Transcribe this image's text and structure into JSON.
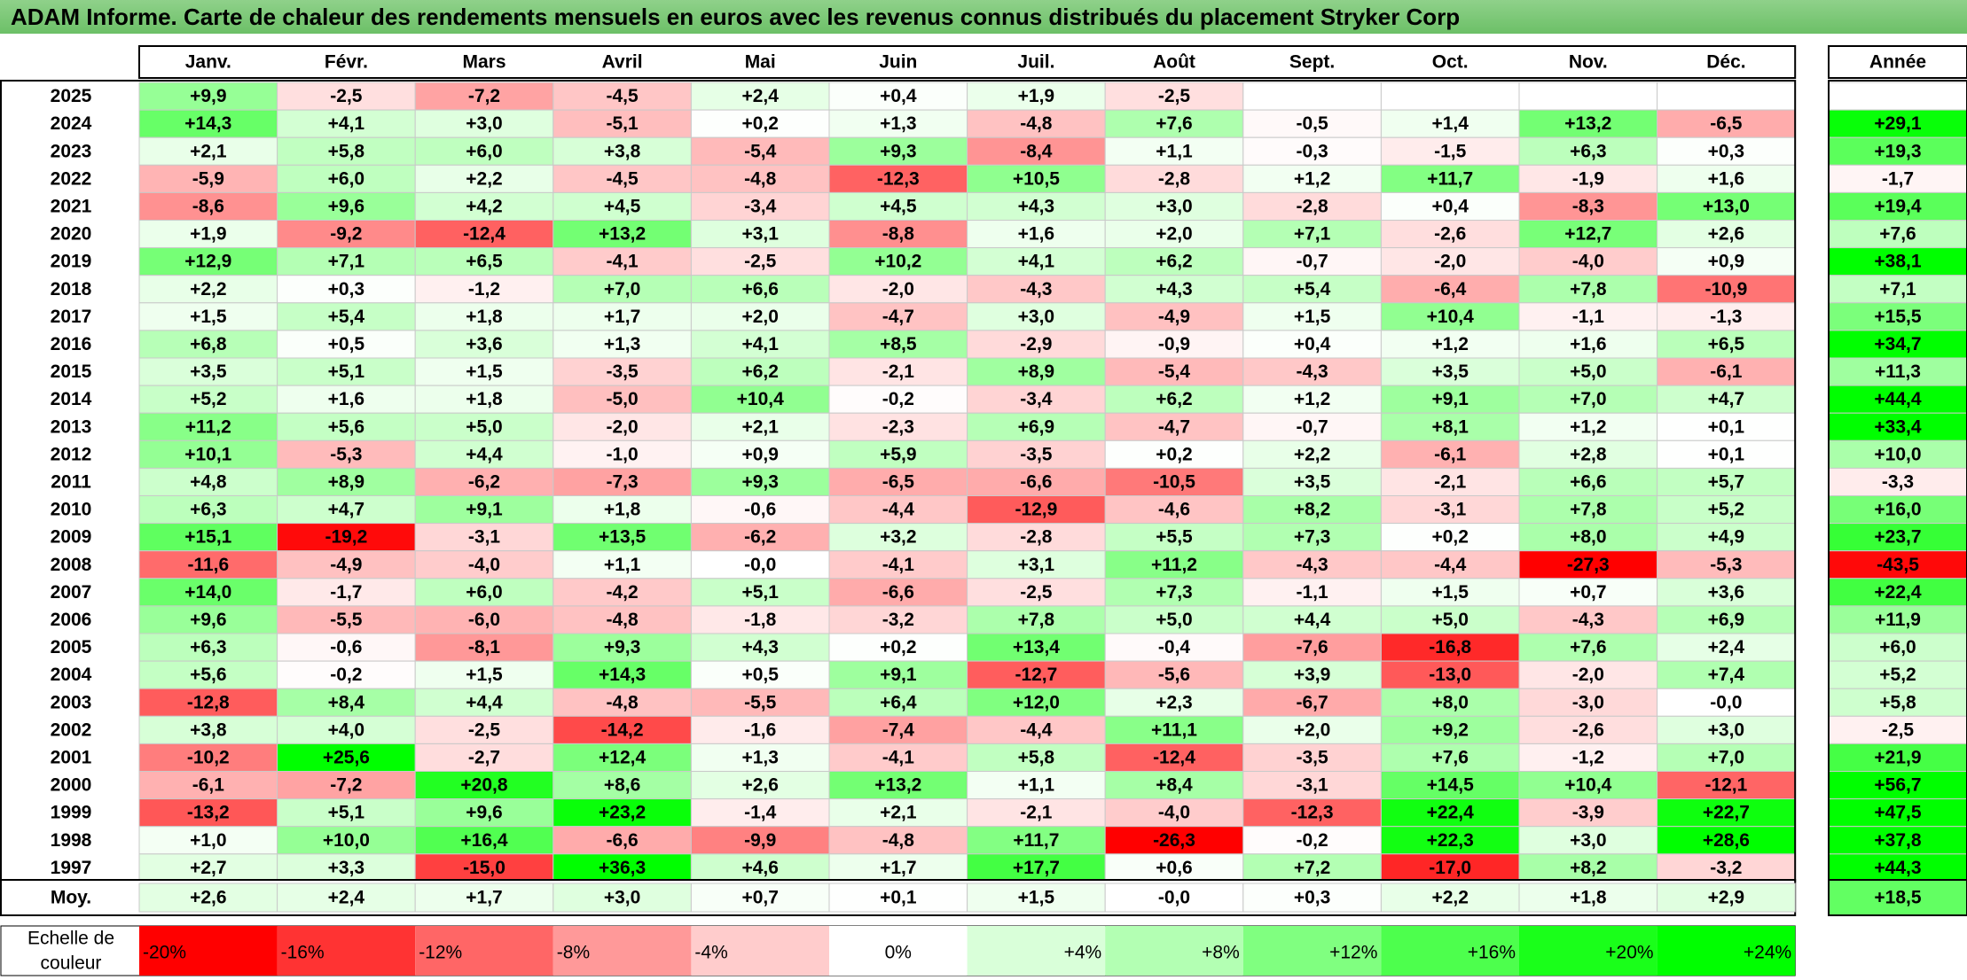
{
  "title": "ADAM Informe. Carte de chaleur des rendements mensuels en euros avec les revenus connus distribués du placement Stryker Corp",
  "chart_data": {
    "type": "heatmap",
    "months": [
      "Janv.",
      "Févr.",
      "Mars",
      "Avril",
      "Mai",
      "Juin",
      "Juil.",
      "Août",
      "Sept.",
      "Oct.",
      "Nov.",
      "Déc."
    ],
    "year_column_label": "Année",
    "average_row_label": "Moy.",
    "rows": [
      {
        "year": "2025",
        "months": [
          "+9,9",
          "-2,5",
          "-7,2",
          "-4,5",
          "+2,4",
          "+0,4",
          "+1,9",
          "-2,5",
          "",
          "",
          "",
          ""
        ],
        "annual": ""
      },
      {
        "year": "2024",
        "months": [
          "+14,3",
          "+4,1",
          "+3,0",
          "-5,1",
          "+0,2",
          "+1,3",
          "-4,8",
          "+7,6",
          "-0,5",
          "+1,4",
          "+13,2",
          "-6,5"
        ],
        "annual": "+29,1"
      },
      {
        "year": "2023",
        "months": [
          "+2,1",
          "+5,8",
          "+6,0",
          "+3,8",
          "-5,4",
          "+9,3",
          "-8,4",
          "+1,1",
          "-0,3",
          "-1,5",
          "+6,3",
          "+0,3"
        ],
        "annual": "+19,3"
      },
      {
        "year": "2022",
        "months": [
          "-5,9",
          "+6,0",
          "+2,2",
          "-4,5",
          "-4,8",
          "-12,3",
          "+10,5",
          "-2,8",
          "+1,2",
          "+11,7",
          "-1,9",
          "+1,6"
        ],
        "annual": "-1,7"
      },
      {
        "year": "2021",
        "months": [
          "-8,6",
          "+9,6",
          "+4,2",
          "+4,5",
          "-3,4",
          "+4,5",
          "+4,3",
          "+3,0",
          "-2,8",
          "+0,4",
          "-8,3",
          "+13,0"
        ],
        "annual": "+19,4"
      },
      {
        "year": "2020",
        "months": [
          "+1,9",
          "-9,2",
          "-12,4",
          "+13,2",
          "+3,1",
          "-8,8",
          "+1,6",
          "+2,0",
          "+7,1",
          "-2,6",
          "+12,7",
          "+2,6"
        ],
        "annual": "+7,6"
      },
      {
        "year": "2019",
        "months": [
          "+12,9",
          "+7,1",
          "+6,5",
          "-4,1",
          "-2,5",
          "+10,2",
          "+4,1",
          "+6,2",
          "-0,7",
          "-2,0",
          "-4,0",
          "+0,9"
        ],
        "annual": "+38,1"
      },
      {
        "year": "2018",
        "months": [
          "+2,2",
          "+0,3",
          "-1,2",
          "+7,0",
          "+6,6",
          "-2,0",
          "-4,3",
          "+4,3",
          "+5,4",
          "-6,4",
          "+7,8",
          "-10,9"
        ],
        "annual": "+7,1"
      },
      {
        "year": "2017",
        "months": [
          "+1,5",
          "+5,4",
          "+1,8",
          "+1,7",
          "+2,0",
          "-4,7",
          "+3,0",
          "-4,9",
          "+1,5",
          "+10,4",
          "-1,1",
          "-1,3"
        ],
        "annual": "+15,5"
      },
      {
        "year": "2016",
        "months": [
          "+6,8",
          "+0,5",
          "+3,6",
          "+1,3",
          "+4,1",
          "+8,5",
          "-2,9",
          "-0,9",
          "+0,4",
          "+1,2",
          "+1,6",
          "+6,5"
        ],
        "annual": "+34,7"
      },
      {
        "year": "2015",
        "months": [
          "+3,5",
          "+5,1",
          "+1,5",
          "-3,5",
          "+6,2",
          "-2,1",
          "+8,9",
          "-5,4",
          "-4,3",
          "+3,5",
          "+5,0",
          "-6,1"
        ],
        "annual": "+11,3"
      },
      {
        "year": "2014",
        "months": [
          "+5,2",
          "+1,6",
          "+1,8",
          "-5,0",
          "+10,4",
          "-0,2",
          "-3,4",
          "+6,2",
          "+1,2",
          "+9,1",
          "+7,0",
          "+4,7"
        ],
        "annual": "+44,4"
      },
      {
        "year": "2013",
        "months": [
          "+11,2",
          "+5,6",
          "+5,0",
          "-2,0",
          "+2,1",
          "-2,3",
          "+6,9",
          "-4,7",
          "-0,7",
          "+8,1",
          "+1,2",
          "+0,1"
        ],
        "annual": "+33,4"
      },
      {
        "year": "2012",
        "months": [
          "+10,1",
          "-5,3",
          "+4,4",
          "-1,0",
          "+0,9",
          "+5,9",
          "-3,5",
          "+0,2",
          "+2,2",
          "-6,1",
          "+2,8",
          "+0,1"
        ],
        "annual": "+10,0"
      },
      {
        "year": "2011",
        "months": [
          "+4,8",
          "+8,9",
          "-6,2",
          "-7,3",
          "+9,3",
          "-6,5",
          "-6,6",
          "-10,5",
          "+3,5",
          "-2,1",
          "+6,6",
          "+5,7"
        ],
        "annual": "-3,3"
      },
      {
        "year": "2010",
        "months": [
          "+6,3",
          "+4,7",
          "+9,1",
          "+1,8",
          "-0,6",
          "-4,4",
          "-12,9",
          "-4,6",
          "+8,2",
          "-3,1",
          "+7,8",
          "+5,2"
        ],
        "annual": "+16,0"
      },
      {
        "year": "2009",
        "months": [
          "+15,1",
          "-19,2",
          "-3,1",
          "+13,5",
          "-6,2",
          "+3,2",
          "-2,8",
          "+5,5",
          "+7,3",
          "+0,2",
          "+8,0",
          "+4,9"
        ],
        "annual": "+23,7"
      },
      {
        "year": "2008",
        "months": [
          "-11,6",
          "-4,9",
          "-4,0",
          "+1,1",
          "-0,0",
          "-4,1",
          "+3,1",
          "+11,2",
          "-4,3",
          "-4,4",
          "-27,3",
          "-5,3"
        ],
        "annual": "-43,5"
      },
      {
        "year": "2007",
        "months": [
          "+14,0",
          "-1,7",
          "+6,0",
          "-4,2",
          "+5,1",
          "-6,6",
          "-2,5",
          "+7,3",
          "-1,1",
          "+1,5",
          "+0,7",
          "+3,6"
        ],
        "annual": "+22,4"
      },
      {
        "year": "2006",
        "months": [
          "+9,6",
          "-5,5",
          "-6,0",
          "-4,8",
          "-1,8",
          "-3,2",
          "+7,8",
          "+5,0",
          "+4,4",
          "+5,0",
          "-4,3",
          "+6,9"
        ],
        "annual": "+11,9"
      },
      {
        "year": "2005",
        "months": [
          "+6,3",
          "-0,6",
          "-8,1",
          "+9,3",
          "+4,3",
          "+0,2",
          "+13,4",
          "-0,4",
          "-7,6",
          "-16,8",
          "+7,6",
          "+2,4"
        ],
        "annual": "+6,0"
      },
      {
        "year": "2004",
        "months": [
          "+5,6",
          "-0,2",
          "+1,5",
          "+14,3",
          "+0,5",
          "+9,1",
          "-12,7",
          "-5,6",
          "+3,9",
          "-13,0",
          "-2,0",
          "+7,4"
        ],
        "annual": "+5,2"
      },
      {
        "year": "2003",
        "months": [
          "-12,8",
          "+8,4",
          "+4,4",
          "-4,8",
          "-5,5",
          "+6,4",
          "+12,0",
          "+2,3",
          "-6,7",
          "+8,0",
          "-3,0",
          "-0,0"
        ],
        "annual": "+5,8"
      },
      {
        "year": "2002",
        "months": [
          "+3,8",
          "+4,0",
          "-2,5",
          "-14,2",
          "-1,6",
          "-7,4",
          "-4,4",
          "+11,1",
          "+2,0",
          "+9,2",
          "-2,6",
          "+3,0"
        ],
        "annual": "-2,5"
      },
      {
        "year": "2001",
        "months": [
          "-10,2",
          "+25,6",
          "-2,7",
          "+12,4",
          "+1,3",
          "-4,1",
          "+5,8",
          "-12,4",
          "-3,5",
          "+7,6",
          "-1,2",
          "+7,0"
        ],
        "annual": "+21,9"
      },
      {
        "year": "2000",
        "months": [
          "-6,1",
          "-7,2",
          "+20,8",
          "+8,6",
          "+2,6",
          "+13,2",
          "+1,1",
          "+8,4",
          "-3,1",
          "+14,5",
          "+10,4",
          "-12,1"
        ],
        "annual": "+56,7"
      },
      {
        "year": "1999",
        "months": [
          "-13,2",
          "+5,1",
          "+9,6",
          "+23,2",
          "-1,4",
          "+2,1",
          "-2,1",
          "-4,0",
          "-12,3",
          "+22,4",
          "-3,9",
          "+22,7"
        ],
        "annual": "+47,5"
      },
      {
        "year": "1998",
        "months": [
          "+1,0",
          "+10,0",
          "+16,4",
          "-6,6",
          "-9,9",
          "-4,8",
          "+11,7",
          "-26,3",
          "-0,2",
          "+22,3",
          "+3,0",
          "+28,6"
        ],
        "annual": "+37,8"
      },
      {
        "year": "1997",
        "months": [
          "+2,7",
          "+3,3",
          "-15,0",
          "+36,3",
          "+4,6",
          "+1,7",
          "+17,7",
          "+0,6",
          "+7,2",
          "-17,0",
          "+8,2",
          "-3,2"
        ],
        "annual": "+44,3"
      }
    ],
    "average": {
      "months": [
        "+2,6",
        "+2,4",
        "+1,7",
        "+3,0",
        "+0,7",
        "+0,1",
        "+1,5",
        "-0,0",
        "+0,3",
        "+2,2",
        "+1,8",
        "+2,9"
      ],
      "annual": "+18,5"
    },
    "scale": {
      "label_line1": "Echelle de",
      "label_line2": "couleur",
      "steps": [
        {
          "label": "-20%",
          "value": -20,
          "color": "#ff0000"
        },
        {
          "label": "-16%",
          "value": -16,
          "color": "#ff3333"
        },
        {
          "label": "-12%",
          "value": -12,
          "color": "#ff6666"
        },
        {
          "label": "-8%",
          "value": -8,
          "color": "#ff9999"
        },
        {
          "label": "-4%",
          "value": -4,
          "color": "#ffcccc"
        },
        {
          "label": "0%",
          "value": 0,
          "color": "#ffffff"
        },
        {
          "label": "+4%",
          "value": 4,
          "color": "#d9ffd9"
        },
        {
          "label": "+8%",
          "value": 8,
          "color": "#b3ffb3"
        },
        {
          "label": "+12%",
          "value": 12,
          "color": "#80ff80"
        },
        {
          "label": "+16%",
          "value": 16,
          "color": "#4dff4d"
        },
        {
          "label": "+20%",
          "value": 20,
          "color": "#1aff1a"
        },
        {
          "label": "+24%",
          "value": 24,
          "color": "#00ff00"
        }
      ]
    },
    "colors": {
      "negative_max": "#ff0000",
      "neutral": "#ffffff",
      "positive_max": "#00ff00",
      "title_bg": "#7fcb7a"
    }
  }
}
